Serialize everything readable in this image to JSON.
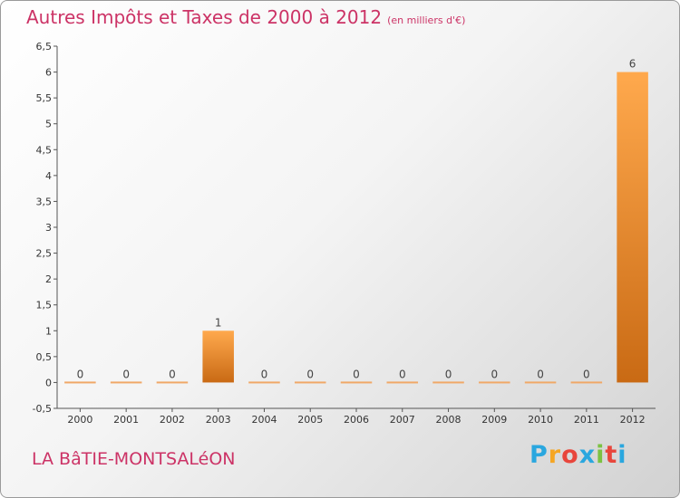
{
  "title": "Autres Impôts et Taxes de 2000 à 2012",
  "unit_label": "(en milliers d'€)",
  "commune": "LA BâTIE-MONTSALéON",
  "logo": {
    "letters": [
      "P",
      "r",
      "o",
      "x",
      "i",
      "t",
      "i"
    ],
    "colors": [
      "#2aa7df",
      "#f5a623",
      "#e8463c",
      "#2aa7df",
      "#7cc242",
      "#e8463c",
      "#2aa7df"
    ]
  },
  "chart_data": {
    "type": "bar",
    "categories": [
      "2000",
      "2001",
      "2002",
      "2003",
      "2004",
      "2005",
      "2006",
      "2007",
      "2008",
      "2009",
      "2010",
      "2011",
      "2012"
    ],
    "values": [
      0,
      0,
      0,
      1,
      0,
      0,
      0,
      0,
      0,
      0,
      0,
      0,
      6
    ],
    "value_labels": [
      "0",
      "0",
      "0",
      "1",
      "0",
      "0",
      "0",
      "0",
      "0",
      "0",
      "0",
      "0",
      "6"
    ],
    "ylim": [
      -0.5,
      6.5
    ],
    "yticks": [
      "-0,5",
      "0",
      "0,5",
      "1",
      "1,5",
      "2",
      "2,5",
      "3",
      "3,5",
      "4",
      "4,5",
      "5",
      "5,5",
      "6",
      "6,5"
    ],
    "ytick_values": [
      -0.5,
      0,
      0.5,
      1,
      1.5,
      2,
      2.5,
      3,
      3.5,
      4,
      4.5,
      5,
      5.5,
      6,
      6.5
    ],
    "colors": {
      "bar_light": "#ffa94d",
      "bar_dark": "#c96a14",
      "zero_line": "#f0a867"
    }
  }
}
